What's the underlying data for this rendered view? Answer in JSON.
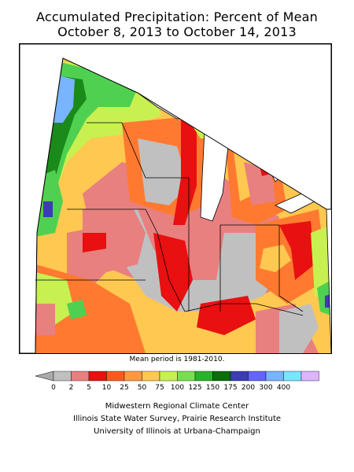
{
  "title_line1": "Accumulated Precipitation: Percent of Mean",
  "title_line2": "October 8, 2013 to October 14, 2013",
  "note": "Mean period is 1981-2010.",
  "legend": {
    "below_min_color": "#aaaaaa",
    "colors": [
      "#c0c0c0",
      "#e88080",
      "#e81010",
      "#ff5a1e",
      "#ff9940",
      "#ffc850",
      "#c8f050",
      "#78e050",
      "#28b428",
      "#0a6e0a",
      "#3c3cb4",
      "#6464ff",
      "#78b4ff",
      "#78e6ff",
      "#dcb4ff"
    ],
    "labels": [
      "0",
      "2",
      "5",
      "10",
      "25",
      "50",
      "75",
      "100",
      "125",
      "150",
      "175",
      "200",
      "300",
      "400"
    ]
  },
  "footer": {
    "line1": "Midwestern Regional Climate Center",
    "line2": "Illinois State Water Survey, Prairie Research Institute",
    "line3": "University of Illinois at Urbana-Champaign"
  },
  "map": {
    "background_color": "#ffc850",
    "colors": {
      "gray": "#c0c0c0",
      "pink": "#e88080",
      "red": "#e81010",
      "orange": "#ff7a30",
      "gold": "#ffc850",
      "yellowgreen": "#c8f050",
      "green": "#50d050",
      "darkgreen": "#1a8a1a",
      "blue": "#3c3cb4",
      "lightblue": "#78b4ff",
      "cyan": "#78e6ff",
      "violet": "#dcb4ff",
      "lake": "#ffffff"
    }
  }
}
